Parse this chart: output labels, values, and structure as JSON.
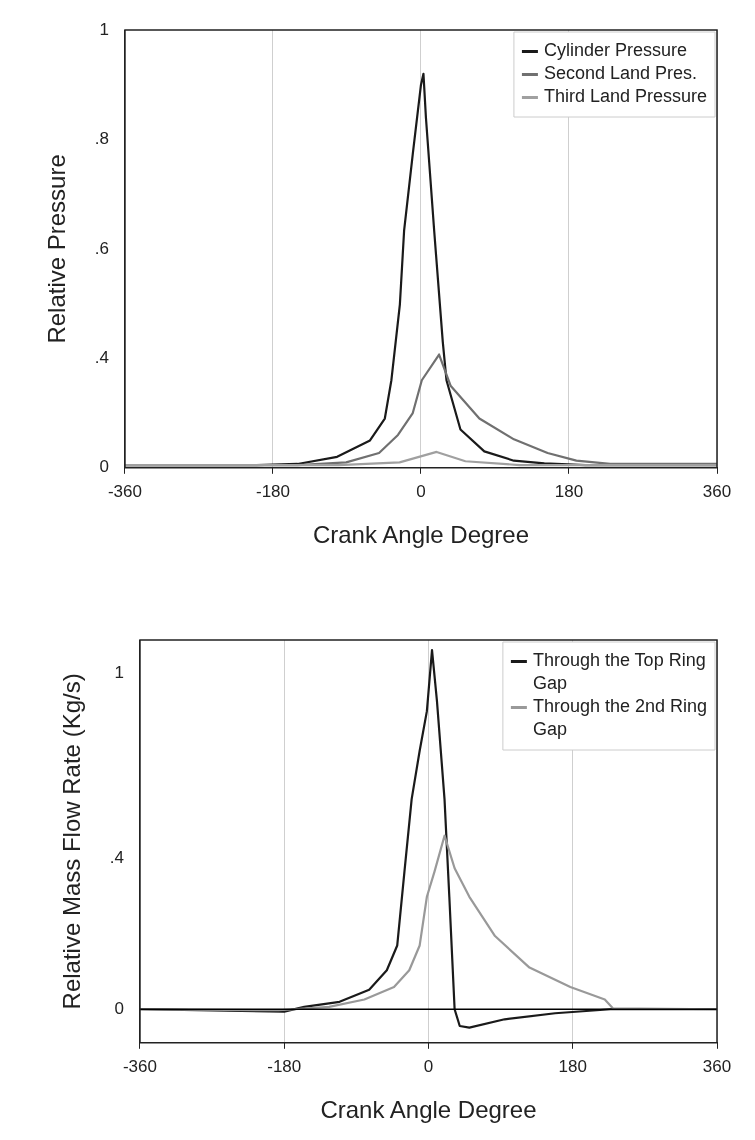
{
  "chart_data": [
    {
      "type": "line",
      "xlabel": "Crank Angle Degree",
      "ylabel": "Relative Pressure",
      "xlim": [
        -360,
        360
      ],
      "xticks": [
        -360,
        -180,
        0,
        180,
        360
      ],
      "ylim": [
        0.2,
        1
      ],
      "yticks": [
        {
          "value": 0.2,
          "label": "0"
        },
        {
          "value": 0.4,
          "label": ".4"
        },
        {
          "value": 0.6,
          "label": ".6"
        },
        {
          "value": 0.8,
          "label": ".8"
        },
        {
          "value": 1,
          "label": "1"
        }
      ],
      "grid": "x",
      "legend": "top right",
      "marker": "none",
      "line_style": "solid",
      "series": [
        {
          "name": "Cylinder Pressure",
          "color": "#1a1a1a",
          "x": [
            -360,
            -200,
            -150,
            -102,
            -62,
            -44,
            -36,
            -25.7,
            -20.5,
            -10,
            0,
            3,
            6,
            16,
            26.5,
            31,
            48,
            77,
            113,
            150,
            200,
            360
          ],
          "values": [
            0.205,
            0.205,
            0.207,
            0.22,
            0.25,
            0.29,
            0.36,
            0.498,
            0.634,
            0.773,
            0.9,
            0.92,
            0.84,
            0.634,
            0.43,
            0.36,
            0.27,
            0.23,
            0.213,
            0.208,
            0.205,
            0.205
          ]
        },
        {
          "name": "Second Land Pres.",
          "color": "#707070",
          "x": [
            -360,
            -150,
            -91,
            -51,
            -28,
            -10,
            1,
            22,
            36,
            71,
            113,
            154,
            189,
            230,
            360
          ],
          "values": [
            0.205,
            0.205,
            0.21,
            0.227,
            0.26,
            0.3,
            0.36,
            0.407,
            0.35,
            0.29,
            0.252,
            0.227,
            0.213,
            0.207,
            0.207
          ]
        },
        {
          "name": "Third Land Pressure",
          "color": "#a0a0a0",
          "x": [
            -360,
            -100,
            -26,
            19,
            54,
            120,
            360
          ],
          "values": [
            0.205,
            0.205,
            0.21,
            0.229,
            0.212,
            0.205,
            0.205
          ]
        }
      ]
    },
    {
      "type": "line",
      "xlabel": "Crank Angle Degree",
      "ylabel": "Relative Mass Flow Rate (Kg/s)",
      "xlim": [
        -360,
        360
      ],
      "xticks": [
        -360,
        -180,
        0,
        180,
        360
      ],
      "ylim": [
        -0.1,
        1.1
      ],
      "yticks": [
        {
          "value": 0,
          "label": "0"
        },
        {
          "value": 0.45,
          "label": ".4"
        },
        {
          "value": 1,
          "label": "1"
        }
      ],
      "grid": "x",
      "legend": "top right",
      "marker": "none",
      "line_style": "solid",
      "ref_lines": [
        {
          "axis": "y",
          "value": 0,
          "color": "#000000"
        }
      ],
      "series": [
        {
          "name": "Through the Top Ring Gap",
          "color": "#1a1a1a",
          "x": [
            -360,
            -180,
            -155,
            -111,
            -74,
            -52,
            -39,
            -30,
            -21,
            -11,
            -2,
            4.4,
            10.6,
            20,
            26,
            32.6,
            39,
            51,
            95,
            158,
            227,
            360
          ],
          "values": [
            0,
            -0.007,
            0.007,
            0.022,
            0.058,
            0.116,
            0.19,
            0.41,
            0.626,
            0.77,
            0.888,
            1.07,
            0.917,
            0.626,
            0.335,
            0,
            -0.05,
            -0.055,
            -0.03,
            -0.012,
            0,
            0
          ]
        },
        {
          "name": "Through the 2nd Ring Gap",
          "color": "#999999",
          "x": [
            -360,
            -187,
            -124,
            -80,
            -43,
            -24,
            -11,
            -2,
            7.5,
            20,
            32.6,
            51,
            83,
            126,
            177,
            220,
            230,
            360
          ],
          "values": [
            0,
            -0.003,
            0.007,
            0.029,
            0.066,
            0.116,
            0.19,
            0.335,
            0.41,
            0.517,
            0.42,
            0.335,
            0.218,
            0.124,
            0.066,
            0.029,
            0.003,
            0
          ]
        }
      ]
    }
  ]
}
